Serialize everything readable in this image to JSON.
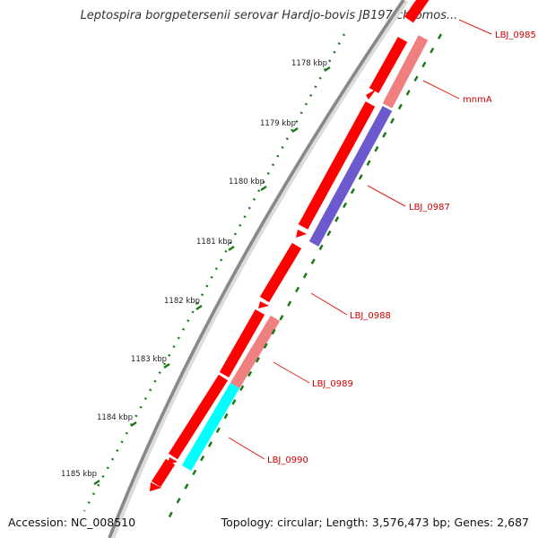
{
  "title": "Leptospira borgpetersenii serovar Hardjo-bovis JB197 chromos...",
  "footer": {
    "accession": "Accession: NC_008510",
    "topology": "Topology: circular; Length: 3,576,473 bp; Genes: 2,687"
  },
  "ticks": [
    "1178 kbp",
    "1179 kbp",
    "1180 kbp",
    "1181 kbp",
    "1182 kbp",
    "1183 kbp",
    "1184 kbp",
    "1185 kbp"
  ],
  "gene_labels": [
    "LBJ_0985",
    "mnmA",
    "LBJ_0987",
    "LBJ_0988",
    "LBJ_0989",
    "LBJ_0990"
  ],
  "colors": {
    "forward_cds": "#ff0000",
    "reverse_cds": "#ff3333",
    "rna_light": "#f08080",
    "cds_violet": "#6a5acd",
    "cds_cyan": "#00ffff",
    "backbone": "#888888",
    "tick_green": "#1a7a1a",
    "label_red": "#d00000"
  }
}
